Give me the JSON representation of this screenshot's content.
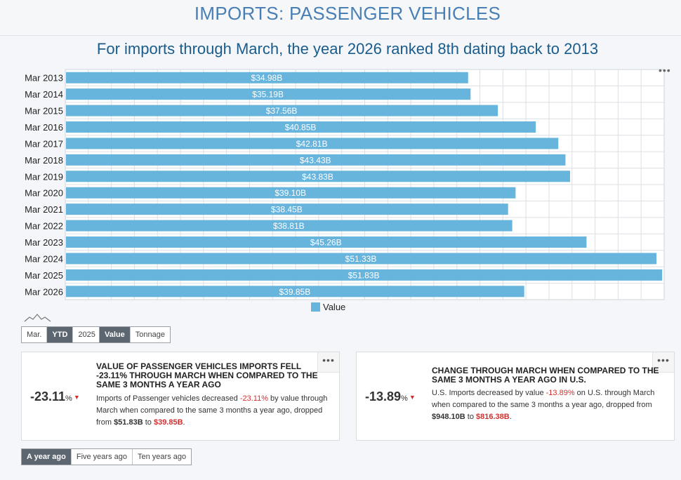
{
  "page_title": "IMPORTS: PASSENGER VEHICLES",
  "subtitle": "For imports through March, the year 2026 ranked 8th dating back to 2013",
  "chart_menu_icon": "more-dots-icon",
  "chart_data": {
    "type": "bar",
    "orientation": "horizontal",
    "title": "For imports through March, the year 2026 ranked 8th dating back to 2013",
    "categories": [
      "Mar 2013",
      "Mar 2014",
      "Mar 2015",
      "Mar 2016",
      "Mar 2017",
      "Mar 2018",
      "Mar 2019",
      "Mar 2020",
      "Mar 2021",
      "Mar 2022",
      "Mar 2023",
      "Mar 2024",
      "Mar 2025",
      "Mar 2026"
    ],
    "series": [
      {
        "name": "Value",
        "values": [
          34.98,
          35.19,
          37.56,
          40.85,
          42.81,
          43.43,
          43.83,
          39.1,
          38.45,
          38.81,
          45.26,
          51.33,
          51.83,
          39.85
        ],
        "color": "#67b4dd"
      }
    ],
    "data_labels": [
      "$34.98B",
      "$35.19B",
      "$37.56B",
      "$40.85B",
      "$42.81B",
      "$43.43B",
      "$43.83B",
      "$39.10B",
      "$38.45B",
      "$38.81B",
      "$45.26B",
      "$51.33B",
      "$51.83B",
      "$39.85B"
    ],
    "xlim": [
      0,
      52
    ],
    "grid": true,
    "legend": "bottom-center"
  },
  "period_buttons": [
    {
      "label": "Mar.",
      "active": false
    },
    {
      "label": "YTD",
      "active": true
    },
    {
      "label": "2025",
      "active": false
    }
  ],
  "measure_buttons": [
    {
      "label": "Value",
      "active": true
    },
    {
      "label": "Tonnage",
      "active": false
    }
  ],
  "cards": [
    {
      "change": "-23.11",
      "unit": "%",
      "title": "VALUE OF PASSENGER VEHICLES IMPORTS FELL -23.11% THROUGH MARCH WHEN COMPARED TO THE SAME 3 MONTHS A YEAR AGO",
      "body_a": "Imports of Passenger vehicles decreased ",
      "body_pct": "-23.11%",
      "body_b": " by value through March when compared to the same 3 months a year ago, dropped from ",
      "body_from": "$51.83B",
      "body_to_word": " to ",
      "body_to": "$39.85B",
      "body_end": "."
    },
    {
      "change": "-13.89",
      "unit": "%",
      "title": "CHANGE THROUGH MARCH WHEN COMPARED TO THE SAME 3 MONTHS A YEAR AGO IN U.S.",
      "body_a": "U.S. Imports decreased by value ",
      "body_pct": "-13.89%",
      "body_b": " on U.S. through March when compared to the same 3 months a year ago, dropped from ",
      "body_from": "$948.10B",
      "body_to_word": " to ",
      "body_to": "$816.38B",
      "body_end": "."
    }
  ],
  "range_buttons": [
    {
      "label": "A year ago",
      "active": true
    },
    {
      "label": "Five years ago",
      "active": false
    },
    {
      "label": "Ten years ago",
      "active": false
    }
  ],
  "colors": {
    "bar": "#67b4dd",
    "title": "#4a7fb5",
    "subtitle": "#1a5c8c",
    "negative": "#d32f2f",
    "active_button": "#5b6670"
  }
}
